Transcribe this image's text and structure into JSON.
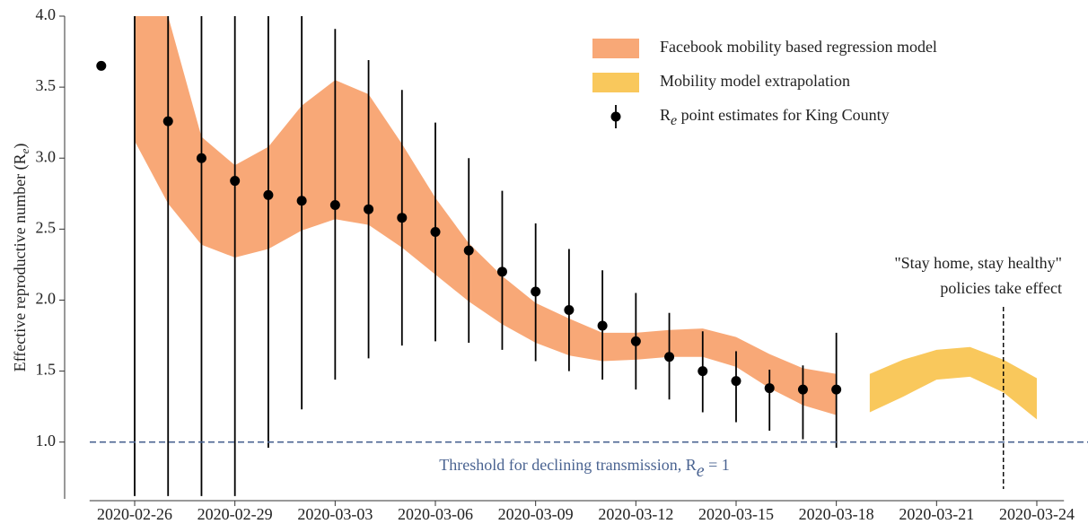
{
  "chart_data": {
    "type": "band_errorbar",
    "ylabel": {
      "text": "Effective reproductive number (R",
      "subscript": "e",
      "suffix": ")"
    },
    "xlim": [
      "2020-02-25",
      "2020-03-25"
    ],
    "xticks": [
      "2020-02-26",
      "2020-02-29",
      "2020-03-03",
      "2020-03-06",
      "2020-03-09",
      "2020-03-12",
      "2020-03-15",
      "2020-03-18",
      "2020-03-21",
      "2020-03-24"
    ],
    "ylim": [
      0.6,
      4.0
    ],
    "yticks": [
      {
        "value": 1,
        "label": "1.0"
      },
      1.5,
      {
        "value": 2,
        "label": "2.0"
      },
      2.5,
      {
        "value": 3,
        "label": "3.0"
      },
      3.5,
      {
        "value": 4,
        "label": "4.0"
      }
    ],
    "series": [
      {
        "name": "Facebook mobility based regression model",
        "kind": "band",
        "color": "#f8a877",
        "x": [
          "2020-02-26",
          "2020-02-27",
          "2020-02-28",
          "2020-02-29",
          "2020-03-01",
          "2020-03-02",
          "2020-03-03",
          "2020-03-04",
          "2020-03-05",
          "2020-03-06",
          "2020-03-07",
          "2020-03-08",
          "2020-03-09",
          "2020-03-10",
          "2020-03-11",
          "2020-03-12",
          "2020-03-13",
          "2020-03-14",
          "2020-03-15",
          "2020-03-16",
          "2020-03-17",
          "2020-03-18"
        ],
        "upper": [
          4.2,
          4.0,
          3.15,
          2.95,
          3.08,
          3.37,
          3.55,
          3.45,
          3.1,
          2.72,
          2.4,
          2.17,
          1.98,
          1.87,
          1.77,
          1.77,
          1.79,
          1.8,
          1.74,
          1.62,
          1.52,
          1.48
        ],
        "lower": [
          3.12,
          2.68,
          2.39,
          2.3,
          2.36,
          2.49,
          2.57,
          2.53,
          2.37,
          2.18,
          1.99,
          1.83,
          1.7,
          1.61,
          1.57,
          1.58,
          1.6,
          1.6,
          1.53,
          1.38,
          1.26,
          1.19
        ]
      },
      {
        "name": "Mobility model extrapolation",
        "kind": "band",
        "color": "#f9c85c",
        "x": [
          "2020-03-19",
          "2020-03-20",
          "2020-03-21",
          "2020-03-22",
          "2020-03-23",
          "2020-03-24"
        ],
        "upper": [
          1.48,
          1.58,
          1.65,
          1.67,
          1.58,
          1.45
        ],
        "lower": [
          1.21,
          1.32,
          1.44,
          1.46,
          1.35,
          1.16
        ]
      },
      {
        "name": "R",
        "name_subscript": "e",
        "name_suffix": " point estimates for King County",
        "kind": "errorbar",
        "color": "#000000",
        "x": [
          "2020-02-25",
          "2020-02-26",
          "2020-02-27",
          "2020-02-28",
          "2020-02-29",
          "2020-03-01",
          "2020-03-02",
          "2020-03-03",
          "2020-03-04",
          "2020-03-05",
          "2020-03-06",
          "2020-03-07",
          "2020-03-08",
          "2020-03-09",
          "2020-03-10",
          "2020-03-11",
          "2020-03-12",
          "2020-03-13",
          "2020-03-14",
          "2020-03-15",
          "2020-03-16",
          "2020-03-17",
          "2020-03-18"
        ],
        "values": [
          3.65,
          null,
          3.26,
          3.0,
          2.84,
          2.74,
          2.7,
          2.67,
          2.64,
          2.58,
          2.48,
          2.35,
          2.2,
          2.06,
          1.93,
          1.82,
          1.71,
          1.6,
          1.5,
          1.43,
          1.38,
          1.37,
          1.37
        ],
        "lower": [
          null,
          0.62,
          0.62,
          0.62,
          0.62,
          0.96,
          1.23,
          1.44,
          1.59,
          1.68,
          1.71,
          1.7,
          1.65,
          1.57,
          1.5,
          1.44,
          1.37,
          1.3,
          1.21,
          1.14,
          1.08,
          1.02,
          0.96
        ],
        "upper": [
          null,
          4.0,
          4.0,
          4.0,
          4.0,
          4.0,
          4.0,
          3.91,
          3.69,
          3.48,
          3.25,
          3.0,
          2.77,
          2.54,
          2.36,
          2.21,
          2.05,
          1.91,
          1.78,
          1.64,
          1.51,
          1.54,
          1.77
        ]
      }
    ],
    "threshold": {
      "value": 1,
      "color": "#4a6391",
      "text": "Threshold for declining transmission, R",
      "subscript": "e",
      "suffix": " = 1"
    },
    "policy": {
      "date": "2020-03-23",
      "lines": [
        "\"Stay home, stay healthy\"",
        "policies take effect"
      ]
    }
  }
}
